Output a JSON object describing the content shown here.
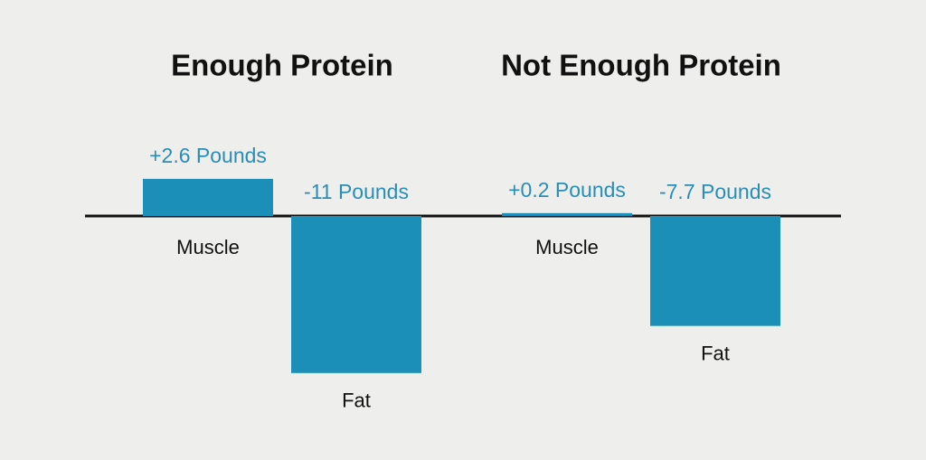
{
  "chart_data": [
    {
      "type": "bar",
      "title": "Enough Protein",
      "categories": [
        "Muscle",
        "Fat"
      ],
      "values": [
        2.6,
        -11
      ],
      "value_labels": [
        "+2.6 Pounds",
        "-11 Pounds"
      ],
      "color": "#1b8fb8"
    },
    {
      "type": "bar",
      "title": "Not Enough Protein",
      "categories": [
        "Muscle",
        "Fat"
      ],
      "values": [
        0.2,
        -7.7
      ],
      "value_labels": [
        "+0.2 Pounds",
        "-7.7 Pounds"
      ],
      "color": "#1b8fb8"
    }
  ]
}
